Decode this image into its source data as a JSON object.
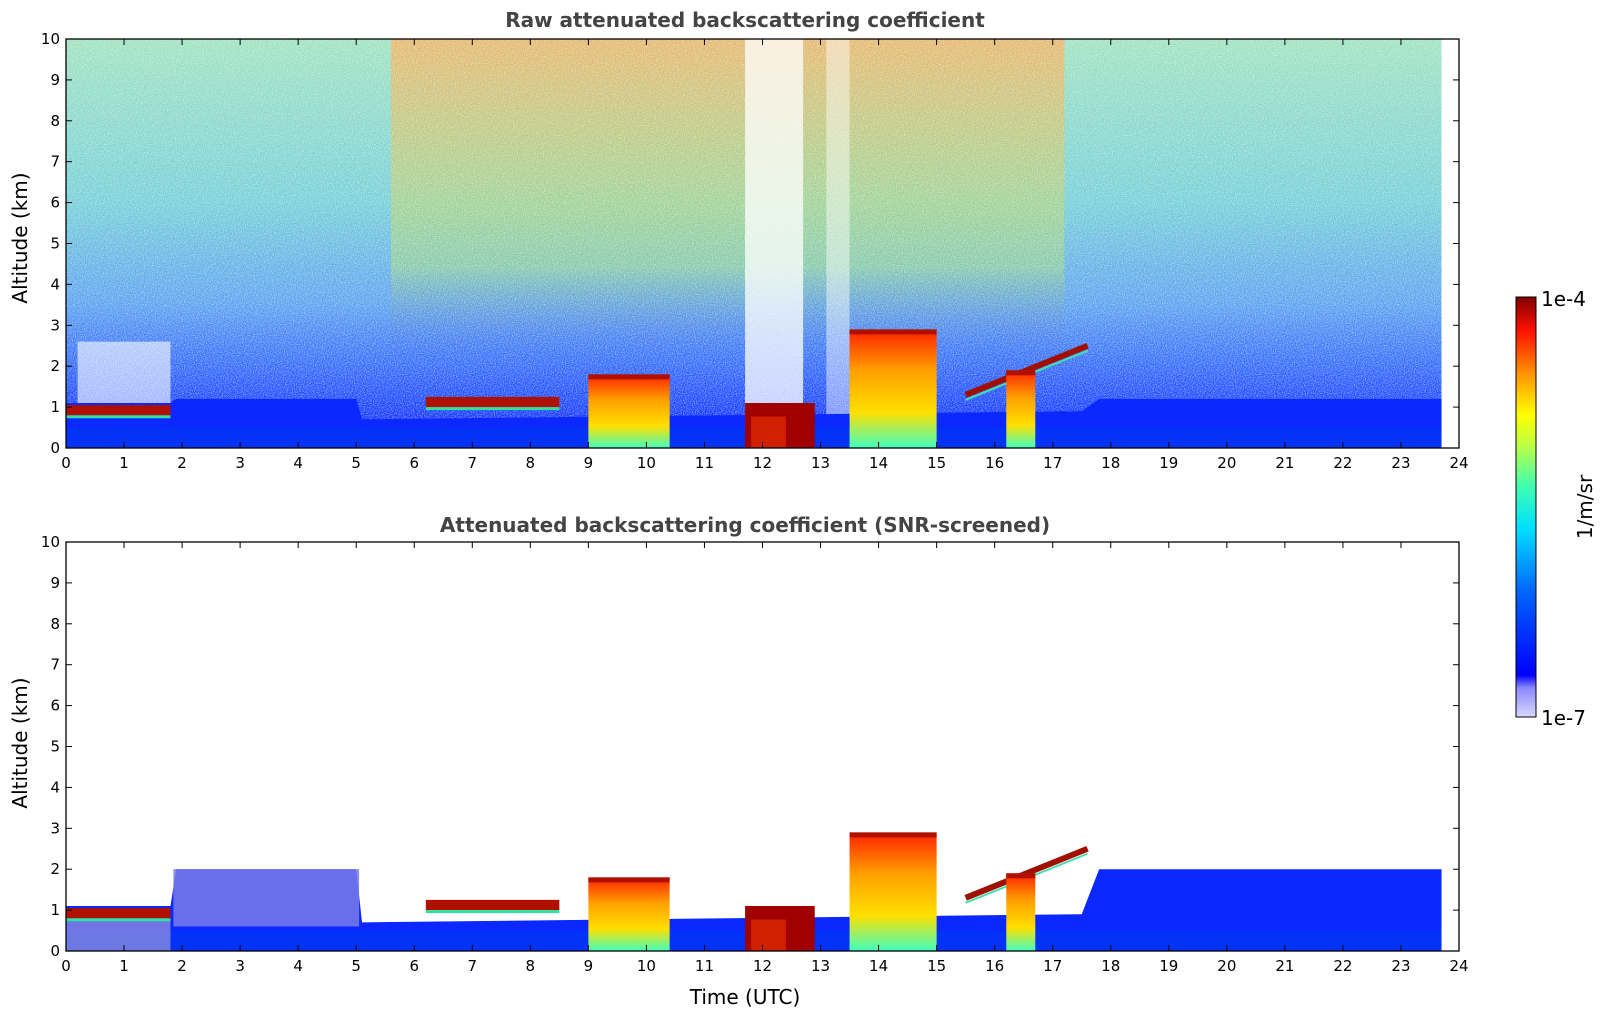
{
  "chart_data": [
    {
      "type": "heatmap",
      "title": "Raw attenuated backscattering coefficient",
      "xlabel": "",
      "ylabel": "Altitude (km)",
      "xlim": [
        0,
        24
      ],
      "ylim": [
        0,
        10
      ],
      "x_ticks": [
        "0",
        "1",
        "2",
        "3",
        "4",
        "5",
        "6",
        "7",
        "8",
        "9",
        "10",
        "11",
        "12",
        "13",
        "14",
        "15",
        "16",
        "17",
        "18",
        "19",
        "20",
        "21",
        "22",
        "23",
        "24"
      ],
      "y_ticks": [
        "0",
        "1",
        "2",
        "3",
        "4",
        "5",
        "6",
        "7",
        "8",
        "9",
        "10"
      ],
      "data_extent_x": [
        0,
        23.7
      ],
      "features": [
        {
          "description": "cloud layer",
          "x": [
            0,
            1.8
          ],
          "y": [
            0.8,
            1.05
          ]
        },
        {
          "description": "cloud layer",
          "x": [
            6.2,
            8.5
          ],
          "y": [
            1.0,
            1.25
          ]
        },
        {
          "description": "convective cloud",
          "x": [
            9.0,
            10.4
          ],
          "y": [
            0,
            1.8
          ]
        },
        {
          "description": "thick cloud",
          "x": [
            11.7,
            12.9
          ],
          "y": [
            0,
            1.1
          ]
        },
        {
          "description": "convective cloud",
          "x": [
            13.5,
            15.0
          ],
          "y": [
            0,
            2.9
          ]
        },
        {
          "description": "rising cloud layer",
          "x": [
            15.5,
            17.6
          ],
          "y": [
            1.3,
            2.5
          ]
        },
        {
          "description": "convective cloud",
          "x": [
            16.2,
            16.7
          ],
          "y": [
            0,
            1.9
          ]
        }
      ]
    },
    {
      "type": "heatmap",
      "title": "Attenuated backscattering coefficient (SNR-screened)",
      "xlabel": "Time (UTC)",
      "ylabel": "Altitude (km)",
      "xlim": [
        0,
        24
      ],
      "ylim": [
        0,
        10
      ],
      "x_ticks": [
        "0",
        "1",
        "2",
        "3",
        "4",
        "5",
        "6",
        "7",
        "8",
        "9",
        "10",
        "11",
        "12",
        "13",
        "14",
        "15",
        "16",
        "17",
        "18",
        "19",
        "20",
        "21",
        "22",
        "23",
        "24"
      ],
      "y_ticks": [
        "0",
        "1",
        "2",
        "3",
        "4",
        "5",
        "6",
        "7",
        "8",
        "9",
        "10"
      ],
      "data_extent_x": [
        0,
        23.7
      ],
      "boundary_layer_top": [
        {
          "x": 0,
          "y": 1.1
        },
        {
          "x": 1.8,
          "y": 1.1
        },
        {
          "x": 1.9,
          "y": 2.0
        },
        {
          "x": 5.0,
          "y": 2.0
        },
        {
          "x": 5.1,
          "y": 0.7
        },
        {
          "x": 17.5,
          "y": 0.9
        },
        {
          "x": 17.8,
          "y": 2.0
        },
        {
          "x": 23.7,
          "y": 2.0
        }
      ]
    }
  ],
  "colorbar": {
    "label": "1/m/sr",
    "min_label": "1e-7",
    "max_label": "1e-4",
    "vmin": 1e-07,
    "vmax": 0.0001,
    "scale": "log",
    "colormap": "jet"
  }
}
